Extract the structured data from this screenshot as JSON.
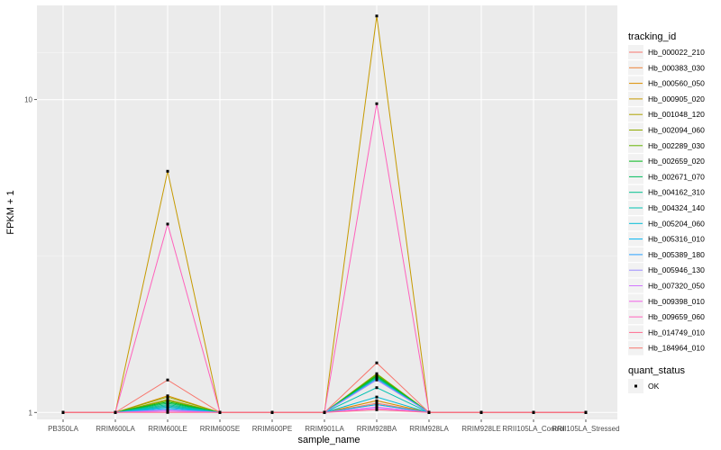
{
  "chart_data": {
    "type": "line",
    "title": "",
    "xlabel": "sample_name",
    "ylabel": "FPKM + 1",
    "y_scale": "log",
    "ylim": [
      0.95,
      20.0
    ],
    "y_ticks": [
      1,
      10
    ],
    "grid": true,
    "categories": [
      "PB350LA",
      "RRIM600LA",
      "RRIM600LE",
      "RRIM600SE",
      "RRIM600PE",
      "RRIM901LA",
      "RRIM928BA",
      "RRIM928LA",
      "RRIM928LE",
      "RRII105LA_Control",
      "RRII105LA_Stressed"
    ],
    "legend_position": "right",
    "legend_title": "tracking_id",
    "series": [
      {
        "name": "Hb_000022_210",
        "color": "#F8766D",
        "values": [
          1,
          1,
          1.05,
          1,
          1,
          1,
          1.07,
          1,
          1,
          1,
          1
        ]
      },
      {
        "name": "Hb_000383_030",
        "color": "#EC8239",
        "values": [
          1,
          1,
          1.04,
          1,
          1,
          1,
          1.06,
          1,
          1,
          1,
          1
        ]
      },
      {
        "name": "Hb_000560_050",
        "color": "#DB8E00",
        "values": [
          1,
          1,
          1.13,
          1,
          1,
          1,
          1.09,
          1,
          1,
          1,
          1
        ]
      },
      {
        "name": "Hb_000905_020",
        "color": "#C69A00",
        "values": [
          1,
          1,
          5.9,
          1,
          1,
          1,
          18.5,
          1,
          1,
          1,
          1
        ]
      },
      {
        "name": "Hb_001048_120",
        "color": "#AEA200",
        "values": [
          1,
          1,
          1.1,
          1,
          1,
          1,
          1.3,
          1,
          1,
          1,
          1
        ]
      },
      {
        "name": "Hb_002094_060",
        "color": "#8FAA00",
        "values": [
          1,
          1,
          1.12,
          1,
          1,
          1,
          1.33,
          1,
          1,
          1,
          1
        ]
      },
      {
        "name": "Hb_002289_030",
        "color": "#64B200",
        "values": [
          1,
          1,
          1.09,
          1,
          1,
          1,
          1.32,
          1,
          1,
          1,
          1
        ]
      },
      {
        "name": "Hb_002659_020",
        "color": "#00B81B",
        "values": [
          1,
          1,
          1.08,
          1,
          1,
          1,
          1.31,
          1,
          1,
          1,
          1
        ]
      },
      {
        "name": "Hb_002671_070",
        "color": "#00BD5C",
        "values": [
          1,
          1,
          1.07,
          1,
          1,
          1,
          1.3,
          1,
          1,
          1,
          1
        ]
      },
      {
        "name": "Hb_004162_310",
        "color": "#00C08E",
        "values": [
          1,
          1,
          1.06,
          1,
          1,
          1,
          1.29,
          1,
          1,
          1,
          1
        ]
      },
      {
        "name": "Hb_004324_140",
        "color": "#00C1B2",
        "values": [
          1,
          1,
          1.05,
          1,
          1,
          1,
          1.2,
          1,
          1,
          1,
          1
        ]
      },
      {
        "name": "Hb_005204_060",
        "color": "#00BCD6",
        "values": [
          1,
          1,
          1.04,
          1,
          1,
          1,
          1.12,
          1,
          1,
          1,
          1
        ]
      },
      {
        "name": "Hb_005316_010",
        "color": "#00B3F2",
        "values": [
          1,
          1,
          1.03,
          1,
          1,
          1,
          1.06,
          1,
          1,
          1,
          1
        ]
      },
      {
        "name": "Hb_005389_180",
        "color": "#29A3FF",
        "values": [
          1,
          1,
          1.02,
          1,
          1,
          1,
          1.28,
          1,
          1,
          1,
          1
        ]
      },
      {
        "name": "Hb_005946_130",
        "color": "#9C8DFF",
        "values": [
          1,
          1,
          1.02,
          1,
          1,
          1,
          1.27,
          1,
          1,
          1,
          1
        ]
      },
      {
        "name": "Hb_007320_050",
        "color": "#D277FF",
        "values": [
          1,
          1,
          1.01,
          1,
          1,
          1,
          1.04,
          1,
          1,
          1,
          1
        ]
      },
      {
        "name": "Hb_009398_010",
        "color": "#F161E8",
        "values": [
          1,
          1,
          1.01,
          1,
          1,
          1,
          1.03,
          1,
          1,
          1,
          1
        ]
      },
      {
        "name": "Hb_009659_060",
        "color": "#FF62BC",
        "values": [
          1,
          1,
          4.0,
          1,
          1,
          1,
          9.7,
          1,
          1,
          1,
          1
        ]
      },
      {
        "name": "Hb_014749_010",
        "color": "#FF6C90",
        "values": [
          1,
          1,
          1.0,
          1,
          1,
          1,
          1.02,
          1,
          1,
          1,
          1
        ]
      },
      {
        "name": "Hb_184964_010",
        "color": "#F8766D",
        "values": [
          1,
          1,
          1.27,
          1,
          1,
          1,
          1.44,
          1,
          1,
          1,
          1
        ]
      }
    ],
    "legend2_title": "quant_status",
    "legend2_items": [
      "OK"
    ]
  }
}
